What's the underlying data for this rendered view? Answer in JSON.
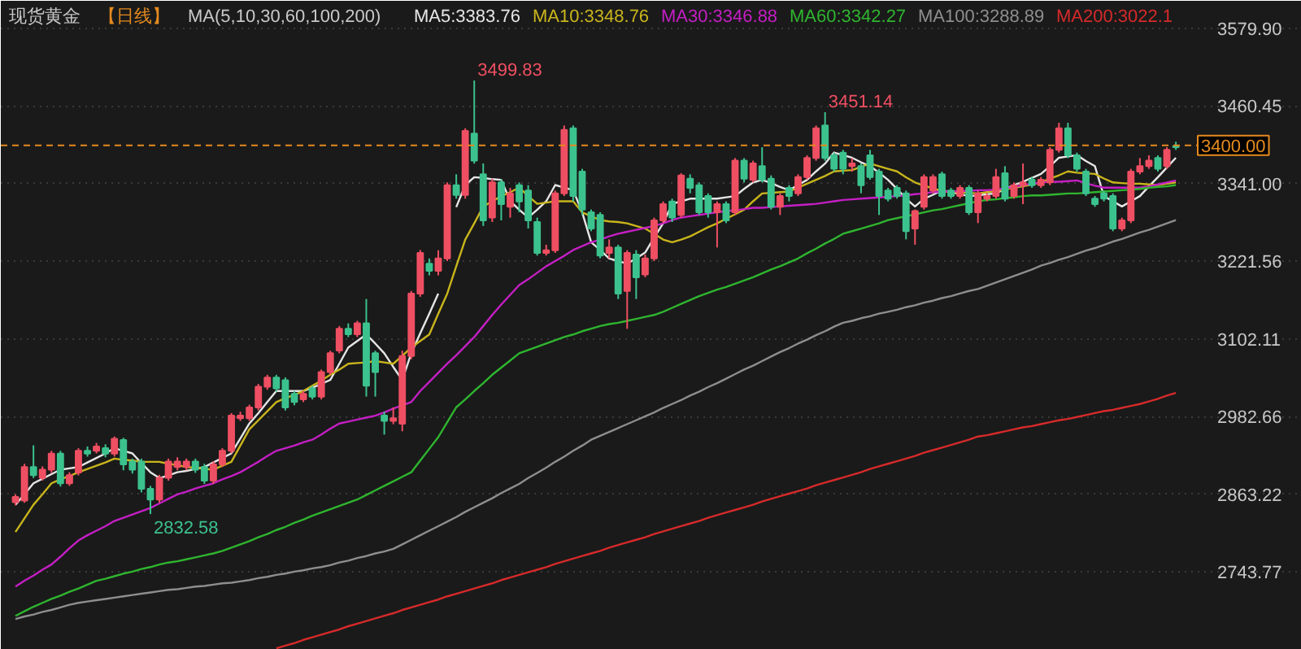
{
  "chart_data": {
    "type": "candlestick",
    "title": "现货黄金",
    "subtitle": "【日线】",
    "legend_title": "MA(5,10,30,60,100,200)",
    "categories": [
      null,
      null,
      null,
      null,
      null,
      null,
      null,
      null,
      null,
      null,
      null,
      null,
      null,
      null,
      null,
      null,
      null,
      null,
      null,
      null,
      null,
      null,
      null,
      null,
      null,
      null,
      null,
      null,
      null,
      null,
      null,
      null,
      null,
      null,
      null,
      null,
      null,
      null,
      null,
      null,
      null,
      null,
      null,
      null,
      null,
      null,
      null,
      null,
      null,
      null,
      null,
      null,
      null,
      null,
      null,
      null,
      null,
      null,
      null,
      null,
      null,
      null,
      null,
      null,
      null,
      null,
      null,
      null,
      null,
      null,
      null,
      null,
      null,
      null,
      null,
      null,
      null,
      null,
      null,
      null,
      null,
      null,
      null,
      null,
      null,
      null,
      null,
      null,
      null,
      null,
      null,
      null,
      null,
      null,
      null,
      null,
      null,
      null,
      null,
      null,
      null,
      null,
      null,
      null,
      null,
      null,
      null,
      null,
      null,
      null,
      null,
      null,
      null,
      null,
      null,
      null,
      null,
      null,
      null,
      null,
      null,
      null,
      null,
      null,
      null,
      null,
      null,
      null,
      null,
      null
    ],
    "ohlc": [
      [
        2850.8,
        2863,
        2846,
        2859.1
      ],
      [
        2853.3,
        2910,
        2850,
        2905.0
      ],
      [
        2905.0,
        2938.4,
        2888,
        2892.5
      ],
      [
        2888.3,
        2906,
        2884,
        2900.8
      ],
      [
        2900.8,
        2930,
        2896,
        2925.8
      ],
      [
        2925.8,
        2930,
        2875,
        2880.0
      ],
      [
        2880.0,
        2897,
        2876,
        2892.5
      ],
      [
        2896.6,
        2934,
        2892,
        2930.0
      ],
      [
        2930.0,
        2936.7,
        2921,
        2925.8
      ],
      [
        2930.0,
        2942,
        2926,
        2936.7
      ],
      [
        2934.2,
        2940,
        2920,
        2925.8
      ],
      [
        2925.8,
        2952,
        2921,
        2948.4
      ],
      [
        2946.7,
        2950,
        2900,
        2909.2
      ],
      [
        2913.3,
        2918,
        2895,
        2900.8
      ],
      [
        2913.3,
        2918,
        2866,
        2871.6
      ],
      [
        2871.6,
        2876,
        2832.58,
        2854.9
      ],
      [
        2854.9,
        2893,
        2850,
        2888.3
      ],
      [
        2888.3,
        2918,
        2884,
        2913.3
      ],
      [
        2905.0,
        2920,
        2900,
        2913.3
      ],
      [
        2905.0,
        2918,
        2900,
        2913.3
      ],
      [
        2913.3,
        2918,
        2896,
        2900.8
      ],
      [
        2905.0,
        2910,
        2879,
        2884.1
      ],
      [
        2884.1,
        2914,
        2879,
        2909.2
      ],
      [
        2909.2,
        2934,
        2905,
        2930.0
      ],
      [
        2930.0,
        2988,
        2926,
        2984.2
      ],
      [
        2980.1,
        2990,
        2976,
        2984.2
      ],
      [
        2980.1,
        3001,
        2976,
        2996.8
      ],
      [
        2996.8,
        3033,
        2992,
        3028.5
      ],
      [
        3028.5,
        3047,
        3024,
        3042.6
      ],
      [
        3042.6,
        3047,
        3021,
        3026.0
      ],
      [
        3038.5,
        3043,
        2992,
        2996.8
      ],
      [
        3017.6,
        3022,
        3000,
        3005.1
      ],
      [
        3009.3,
        3022,
        3005,
        3017.6
      ],
      [
        3026.0,
        3030,
        3009,
        3013.4
      ],
      [
        3013.4,
        3055,
        3009,
        3051.0
      ],
      [
        3051.0,
        3084,
        3047,
        3080.2
      ],
      [
        3084.4,
        3122,
        3080,
        3117.7
      ],
      [
        3117.7,
        3126.1,
        3105,
        3109.4
      ],
      [
        3109.4,
        3130,
        3105,
        3126.1
      ],
      [
        3126.1,
        3163.6,
        3013.4,
        3030.1
      ],
      [
        3080.2,
        3084,
        3013.4,
        3051.0
      ],
      [
        2984.2,
        2990,
        2955.0,
        2975.9
      ],
      [
        2975.9,
        2996.8,
        2971,
        2980.1
      ],
      [
        2971.7,
        3084,
        2960,
        3076.0
      ],
      [
        3076.0,
        3176,
        3071,
        3172.0
      ],
      [
        3172.0,
        3239,
        3167,
        3234.5
      ],
      [
        3217.9,
        3226,
        3200,
        3207.0
      ],
      [
        3207.0,
        3238.7,
        3200,
        3226.2
      ],
      [
        3226.2,
        3343,
        3222,
        3338.8
      ],
      [
        3338.8,
        3355.5,
        3318,
        3323.8
      ],
      [
        3323.8,
        3426.4,
        3318,
        3422.3
      ],
      [
        3418.1,
        3499.83,
        3372,
        3376.4
      ],
      [
        3355.5,
        3372.2,
        3276,
        3284.6
      ],
      [
        3288.8,
        3348.8,
        3282.1,
        3343.0
      ],
      [
        3343.0,
        3348,
        3284.6,
        3309.6
      ],
      [
        3305.5,
        3334.7,
        3288.8,
        3326.3
      ],
      [
        3338.8,
        3343,
        3297.1,
        3313.8
      ],
      [
        3330.5,
        3338.8,
        3272.1,
        3284.6
      ],
      [
        3282.1,
        3288.8,
        3230.4,
        3234.5
      ],
      [
        3234.5,
        3247.1,
        3230.4,
        3238.7
      ],
      [
        3238.7,
        3330.5,
        3234.5,
        3326.3
      ],
      [
        3326.3,
        3430.6,
        3322.1,
        3423.9
      ],
      [
        3426.4,
        3430.6,
        3313.8,
        3322.1
      ],
      [
        3359.7,
        3363.9,
        3292.9,
        3301.3
      ],
      [
        3297.1,
        3301.3,
        3267.9,
        3272.1
      ],
      [
        3292.9,
        3297.1,
        3226.2,
        3230.4
      ],
      [
        3234.5,
        3255.4,
        3226.2,
        3242.9
      ],
      [
        3242.9,
        3247.1,
        3163.6,
        3172.0
      ],
      [
        3176.1,
        3238.7,
        3117.7,
        3234.5
      ],
      [
        3232.0,
        3238.7,
        3163.6,
        3197.0
      ],
      [
        3201.2,
        3232.0,
        3197.0,
        3226.2
      ],
      [
        3226.2,
        3288.8,
        3222,
        3284.6
      ],
      [
        3284.6,
        3313.8,
        3280.4,
        3309.6
      ],
      [
        3313.8,
        3318.0,
        3282.1,
        3288.8
      ],
      [
        3292.9,
        3357.2,
        3288.8,
        3353.8
      ],
      [
        3348.8,
        3355.5,
        3326.3,
        3334.7
      ],
      [
        3338.8,
        3343.0,
        3292.9,
        3297.1
      ],
      [
        3322.1,
        3326.3,
        3288.8,
        3297.1
      ],
      [
        3297.1,
        3313.8,
        3242.9,
        3309.6
      ],
      [
        3309.6,
        3313.8,
        3280.4,
        3284.6
      ],
      [
        3297.1,
        3380.5,
        3292.9,
        3376.4
      ],
      [
        3376.4,
        3380.5,
        3343.0,
        3348.8
      ],
      [
        3347.2,
        3376.4,
        3343.0,
        3372.2
      ],
      [
        3368.0,
        3397.2,
        3343.0,
        3347.2
      ],
      [
        3348.8,
        3353.8,
        3301.3,
        3305.5
      ],
      [
        3305.5,
        3326.3,
        3292.9,
        3322.1
      ],
      [
        3334.7,
        3338.8,
        3313.8,
        3322.1
      ],
      [
        3326.3,
        3355.5,
        3322.1,
        3351.3
      ],
      [
        3351.3,
        3384.7,
        3347.2,
        3380.5
      ],
      [
        3380.5,
        3430.6,
        3376.4,
        3426.4
      ],
      [
        3430.6,
        3451.14,
        3376.4,
        3380.5
      ],
      [
        3384.7,
        3388.9,
        3359.7,
        3363.9
      ],
      [
        3388.9,
        3393.1,
        3355.5,
        3363.9
      ],
      [
        3368.0,
        3380.5,
        3359.7,
        3372.2
      ],
      [
        3368.0,
        3372.2,
        3326.3,
        3338.8
      ],
      [
        3384.7,
        3393.1,
        3347.2,
        3351.3
      ],
      [
        3359.7,
        3363.9,
        3292.9,
        3322.1
      ],
      [
        3330.5,
        3334.7,
        3313.8,
        3318.0
      ],
      [
        3334.7,
        3338.8,
        3318.0,
        3322.1
      ],
      [
        3326.3,
        3330.5,
        3255.4,
        3267.9
      ],
      [
        3272.1,
        3301.3,
        3247.1,
        3298.8
      ],
      [
        3305.5,
        3355.5,
        3301.3,
        3351.3
      ],
      [
        3330.5,
        3355.5,
        3326.3,
        3351.3
      ],
      [
        3355.5,
        3359.7,
        3318.0,
        3322.1
      ],
      [
        3330.5,
        3334.7,
        3318.0,
        3322.1
      ],
      [
        3322.1,
        3338.8,
        3318.0,
        3334.7
      ],
      [
        3334.7,
        3338.8,
        3292.9,
        3297.1
      ],
      [
        3297.1,
        3330.5,
        3280.4,
        3326.3
      ],
      [
        3318.0,
        3326.3,
        3313.8,
        3322.1
      ],
      [
        3322.1,
        3363.9,
        3318.0,
        3351.3
      ],
      [
        3357.2,
        3368.0,
        3313.8,
        3318.0
      ],
      [
        3322.1,
        3343.0,
        3318.0,
        3338.8
      ],
      [
        3338.8,
        3372.2,
        3309.6,
        3343.0
      ],
      [
        3347.2,
        3351.3,
        3334.7,
        3338.8
      ],
      [
        3338.8,
        3351.3,
        3334.7,
        3347.2
      ],
      [
        3343.0,
        3397.2,
        3338.8,
        3393.1
      ],
      [
        3393.1,
        3434.8,
        3388.9,
        3426.4
      ],
      [
        3426.4,
        3434.8,
        3380.5,
        3384.7
      ],
      [
        3384.7,
        3388.9,
        3359.7,
        3363.9
      ],
      [
        3359.7,
        3363.9,
        3322.1,
        3326.3
      ],
      [
        3318.0,
        3322.1,
        3305.5,
        3309.6
      ],
      [
        3326.3,
        3330.5,
        3313.8,
        3318.0
      ],
      [
        3322.1,
        3326.3,
        3267.9,
        3272.1
      ],
      [
        3272.1,
        3288.8,
        3267.9,
        3284.6
      ],
      [
        3284.6,
        3363.9,
        3280.4,
        3359.7
      ],
      [
        3359.7,
        3380.5,
        3355.5,
        3368.0
      ],
      [
        3368.0,
        3384.7,
        3363.9,
        3376.4
      ],
      [
        3380.5,
        3384.7,
        3359.7,
        3363.9
      ],
      [
        3368.0,
        3397.2,
        3363.9,
        3393.1
      ],
      [
        3398.9,
        3405.6,
        3393.1,
        3397.2
      ]
    ],
    "colors": [
      "#ef4f62",
      "#ef4f62",
      "#3cc28e",
      "#ef4f62",
      "#ef4f62",
      "#3cc28e",
      "#ef4f62",
      "#ef4f62",
      "#3cc28e",
      "#ef4f62",
      "#3cc28e",
      "#ef4f62",
      "#3cc28e",
      "#3cc28e",
      "#3cc28e",
      "#3cc28e",
      "#ef4f62",
      "#ef4f62",
      "#ef4f62",
      "#ef4f62",
      "#3cc28e",
      "#3cc28e",
      "#ef4f62",
      "#ef4f62",
      "#ef4f62",
      "#ef4f62",
      "#ef4f62",
      "#ef4f62",
      "#ef4f62",
      "#3cc28e",
      "#3cc28e",
      "#3cc28e",
      "#ef4f62",
      "#3cc28e",
      "#ef4f62",
      "#ef4f62",
      "#ef4f62",
      "#3cc28e",
      "#ef4f62",
      "#3cc28e",
      "#3cc28e",
      "#3cc28e",
      "#ef4f62",
      "#ef4f62",
      "#ef4f62",
      "#ef4f62",
      "#3cc28e",
      "#ef4f62",
      "#ef4f62",
      "#3cc28e",
      "#ef4f62",
      "#3cc28e",
      "#3cc28e",
      "#ef4f62",
      "#3cc28e",
      "#ef4f62",
      "#3cc28e",
      "#3cc28e",
      "#3cc28e",
      "#ef4f62",
      "#ef4f62",
      "#ef4f62",
      "#3cc28e",
      "#3cc28e",
      "#3cc28e",
      "#3cc28e",
      "#ef4f62",
      "#3cc28e",
      "#ef4f62",
      "#3cc28e",
      "#ef4f62",
      "#ef4f62",
      "#ef4f62",
      "#3cc28e",
      "#ef4f62",
      "#3cc28e",
      "#3cc28e",
      "#3cc28e",
      "#ef4f62",
      "#3cc28e",
      "#ef4f62",
      "#3cc28e",
      "#ef4f62",
      "#3cc28e",
      "#3cc28e",
      "#ef4f62",
      "#3cc28e",
      "#ef4f62",
      "#ef4f62",
      "#ef4f62",
      "#3cc28e",
      "#3cc28e",
      "#3cc28e",
      "#ef4f62",
      "#3cc28e",
      "#3cc28e",
      "#3cc28e",
      "#3cc28e",
      "#3cc28e",
      "#3cc28e",
      "#ef4f62",
      "#ef4f62",
      "#ef4f62",
      "#3cc28e",
      "#3cc28e",
      "#ef4f62",
      "#3cc28e",
      "#ef4f62",
      "#ef4f62",
      "#ef4f62",
      "#3cc28e",
      "#ef4f62",
      "#ef4f62",
      "#3cc28e",
      "#ef4f62",
      "#ef4f62",
      "#ef4f62",
      "#3cc28e",
      "#3cc28e",
      "#3cc28e",
      "#3cc28e",
      "#3cc28e",
      "#3cc28e",
      "#ef4f62",
      "#ef4f62",
      "#ef4f62",
      "#ef4f62",
      "#3cc28e",
      "#ef4f62",
      "#3cc28e"
    ],
    "series": [
      {
        "name": "MA5:3383.76",
        "type": "line",
        "color": "#e6e6e6",
        "values": [
          2847,
          2863,
          2880,
          2887,
          2894,
          2901,
          2903,
          2905,
          2912,
          2919,
          2926,
          2934,
          2930,
          2926,
          2911,
          2897,
          2888,
          2892,
          2897,
          2899,
          2902,
          2905,
          2912,
          2919,
          2926,
          2949,
          2972,
          2988,
          3005,
          3022,
          3022,
          3022,
          3022,
          3027,
          3033,
          3039,
          3064,
          3089,
          3099,
          3109,
          3095,
          3080,
          3059,
          3039,
          3080,
          3111,
          3141,
          3172,
          null,
          3305,
          3339,
          3351,
          3350,
          3348,
          3347,
          3314,
          3301,
          3289,
          3301,
          3314,
          3339,
          3335,
          3331,
          3297,
          3251,
          3239,
          3226,
          3222,
          3218,
          3226,
          3235,
          3258,
          3280,
          3310,
          3314,
          3318,
          3318,
          3318,
          3318,
          3320,
          3322,
          3333,
          3343,
          3347,
          3342,
          3336,
          3331,
          3339,
          3347,
          3360,
          3372,
          3389,
          3385,
          3381,
          3374,
          3368,
          3358,
          3347,
          3333,
          3318,
          3306,
          3318,
          3324,
          3331,
          3328,
          3325,
          3322,
          3323,
          3325,
          3326,
          3333,
          3339,
          3344,
          3350,
          3356,
          3368,
          3381,
          3383,
          3385,
          3376,
          3368,
          3322,
          3314,
          3306,
          3314,
          3322,
          3337,
          3351,
          3366,
          3381
        ]
      },
      {
        "name": "MA10:3348.76",
        "type": "line",
        "color": "#c9b51c",
        "values": [
          2805,
          2826,
          2847,
          2863,
          2880,
          2886,
          2891,
          2897,
          2902,
          2907,
          2912,
          2918,
          2916,
          2915,
          2913,
          2913,
          2913,
          2910,
          2908,
          2905,
          2904,
          2902,
          2901,
          2907,
          2913,
          2938,
          2963,
          2977,
          2991,
          3005,
          3011,
          3016,
          3022,
          3030,
          3038,
          3047,
          3055,
          3064,
          3065,
          3066,
          3068,
          3066,
          3064,
          3076,
          3089,
          3099,
          3109,
          3141,
          3172,
          3214,
          3255,
          3280,
          3306,
          3314,
          3322,
          3328,
          3335,
          3322,
          3310,
          3312,
          3314,
          3314,
          3314,
          3297,
          3291,
          3285,
          3283,
          3282,
          3280,
          3276,
          3272,
          3264,
          3255,
          3251,
          3255,
          3260,
          3267,
          3274,
          3280,
          3287,
          3294,
          3301,
          3314,
          3326,
          3327,
          3328,
          3329,
          3335,
          3341,
          3347,
          3353,
          3360,
          3361,
          3362,
          3367,
          3372,
          3368,
          3364,
          3360,
          3351,
          3343,
          3338,
          3334,
          3329,
          3328,
          3328,
          3327,
          3326,
          3328,
          3330,
          3332,
          3335,
          3337,
          3340,
          3343,
          3349,
          3354,
          3360,
          3358,
          3357,
          3356,
          3349,
          3343,
          3342,
          3341,
          3341,
          3340,
          3339,
          3341,
          3343
        ]
      },
      {
        "name": "MA30:3346.88",
        "type": "line",
        "color": "#c41fc4",
        "values": [
          2721,
          2730,
          2738,
          2747,
          2755,
          2767,
          2780,
          2792,
          2800,
          2807,
          2814,
          2822,
          2827,
          2832,
          2837,
          2842,
          2849,
          2856,
          2863,
          2867,
          2872,
          2876,
          2880,
          2886,
          2891,
          2897,
          2905,
          2913,
          2922,
          2930,
          2934,
          2938,
          2943,
          2947,
          2955,
          2964,
          2972,
          2975,
          2978,
          2981,
          2984,
          2989,
          2995,
          3000,
          3005,
          3022,
          3036,
          3050,
          3064,
          3077,
          3091,
          3105,
          3122,
          3139,
          3155,
          3170,
          3185,
          3194,
          3204,
          3214,
          3222,
          3230,
          3239,
          3245,
          3251,
          3255,
          3260,
          3264,
          3267,
          3270,
          3273,
          3276,
          3280,
          3285,
          3289,
          3291,
          3293,
          3295,
          3297,
          3299,
          3300,
          3302,
          3304,
          3304,
          3305,
          3306,
          3307,
          3308,
          3309,
          3310,
          3312,
          3314,
          3316,
          3317,
          3318,
          3319,
          3320,
          3321,
          3322,
          3323,
          3325,
          3326,
          3328,
          3329,
          3329,
          3330,
          3330,
          3331,
          3331,
          3332,
          3334,
          3336,
          3339,
          3341,
          3343,
          3344,
          3344,
          3345,
          3346,
          3342,
          3338,
          3335,
          3335,
          3335,
          3335,
          3335,
          3337,
          3340,
          3343,
          3346
        ]
      },
      {
        "name": "MA60:3342.27",
        "type": "line",
        "color": "#2fb52f",
        "values": [
          2676,
          2683,
          2690,
          2696,
          2702,
          2707,
          2713,
          2718,
          2724,
          2730,
          2733,
          2737,
          2741,
          2744,
          2748,
          2751,
          2755,
          2758,
          2760,
          2763,
          2766,
          2769,
          2772,
          2776,
          2781,
          2786,
          2791,
          2797,
          2802,
          2808,
          2813,
          2819,
          2824,
          2830,
          2835,
          2840,
          2845,
          2850,
          2855,
          2862,
          2869,
          2876,
          2883,
          2890,
          2897,
          2915,
          2933,
          2951,
          2974,
          2997,
          3009,
          3022,
          3034,
          3047,
          3058,
          3069,
          3080,
          3085,
          3090,
          3095,
          3100,
          3105,
          3109,
          3114,
          3118,
          3122,
          3125,
          3127,
          3130,
          3133,
          3136,
          3139,
          3144,
          3150,
          3156,
          3162,
          3168,
          3173,
          3178,
          3182,
          3187,
          3192,
          3197,
          3203,
          3209,
          3214,
          3220,
          3226,
          3234,
          3241,
          3249,
          3256,
          3264,
          3268,
          3272,
          3276,
          3280,
          3285,
          3288,
          3291,
          3294,
          3297,
          3300,
          3302,
          3305,
          3308,
          3311,
          3314,
          3316,
          3317,
          3319,
          3320,
          3322,
          3323,
          3323,
          3324,
          3325,
          3326,
          3326,
          3327,
          3328,
          3329,
          3330,
          3331,
          3332,
          3333,
          3335,
          3336,
          3337,
          3339
        ]
      },
      {
        "name": "MA100:3288.89",
        "type": "line",
        "color": "#8e8e8e",
        "values": [
          2671,
          2675,
          2678,
          2682,
          2685,
          2689,
          2693,
          2696,
          2698,
          2700,
          2702,
          2704,
          2706,
          2708,
          2710,
          2712,
          2714,
          2716,
          2717,
          2719,
          2721,
          2722,
          2724,
          2726,
          2727,
          2729,
          2731,
          2734,
          2736,
          2739,
          2741,
          2744,
          2746,
          2749,
          2751,
          2754,
          2758,
          2761,
          2765,
          2768,
          2772,
          2775,
          2779,
          2786,
          2793,
          2800,
          2807,
          2814,
          2821,
          2828,
          2836,
          2843,
          2850,
          2857,
          2865,
          2872,
          2879,
          2888,
          2896,
          2904,
          2913,
          2921,
          2930,
          2938,
          2947,
          2953,
          2959,
          2965,
          2971,
          2977,
          2983,
          2989,
          2996,
          3002,
          3008,
          3015,
          3021,
          3028,
          3034,
          3041,
          3048,
          3055,
          3061,
          3068,
          3075,
          3082,
          3088,
          3095,
          3101,
          3108,
          3114,
          3121,
          3127,
          3130,
          3134,
          3137,
          3141,
          3144,
          3147,
          3151,
          3154,
          3158,
          3161,
          3165,
          3168,
          3172,
          3176,
          3179,
          3184,
          3189,
          3194,
          3199,
          3204,
          3209,
          3215,
          3219,
          3224,
          3228,
          3233,
          3238,
          3242,
          3247,
          3252,
          3256,
          3261,
          3266,
          3270,
          3275,
          3280,
          3285
        ]
      },
      {
        "name": "MA200:3022.1",
        "type": "line",
        "color": "#d62a2a",
        "values": [
          null,
          null,
          null,
          null,
          null,
          null,
          null,
          null,
          null,
          null,
          null,
          null,
          null,
          null,
          null,
          null,
          null,
          null,
          null,
          null,
          null,
          null,
          null,
          null,
          null,
          null,
          null,
          null,
          null,
          2626,
          2630,
          2634,
          2639,
          2643,
          2647,
          2651,
          2655,
          2660,
          2664,
          2668,
          2672,
          2676,
          2680,
          2685,
          2689,
          2693,
          2697,
          2701,
          2706,
          2710,
          2714,
          2718,
          2722,
          2726,
          2731,
          2735,
          2739,
          2743,
          2747,
          2751,
          2756,
          2760,
          2764,
          2768,
          2772,
          2776,
          2781,
          2785,
          2789,
          2793,
          2797,
          2802,
          2806,
          2810,
          2814,
          2818,
          2822,
          2827,
          2831,
          2835,
          2839,
          2843,
          2847,
          2852,
          2856,
          2860,
          2864,
          2868,
          2872,
          2877,
          2881,
          2885,
          2889,
          2893,
          2897,
          2902,
          2906,
          2910,
          2914,
          2918,
          2922,
          2927,
          2931,
          2935,
          2939,
          2943,
          2947,
          2952,
          2954,
          2957,
          2960,
          2963,
          2966,
          2968,
          2971,
          2974,
          2977,
          2979,
          2982,
          2985,
          2988,
          2991,
          2993,
          2996,
          2999,
          3002,
          3006,
          3010,
          3015,
          3019
        ]
      }
    ],
    "ylim": [
      2623.7,
      3622.5
    ],
    "yticks": [
      2743.77,
      2863.22,
      2982.66,
      3102.11,
      3221.56,
      {
        "value": 3341.0,
        "label": "3341.00"
      },
      3460.45,
      {
        "value": 3579.9,
        "label": "3579.90"
      }
    ],
    "tick_labels": "y",
    "grid": "y",
    "ref_lines": [
      {
        "axis": "y",
        "value": 3400,
        "label": "3400.00",
        "color": "#e58a1f",
        "line_style": "dashed"
      }
    ],
    "annotations": [
      "3499.83",
      "3451.14",
      "2832.58"
    ]
  }
}
